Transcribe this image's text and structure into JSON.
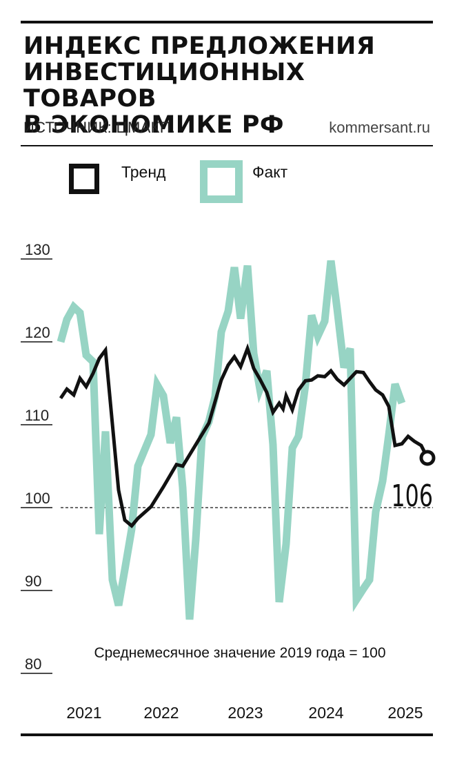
{
  "header": {
    "title_lines": [
      "Индекс предложения",
      "инвестиционных товаров",
      "в экономике РФ"
    ],
    "source": "ИСТОЧНИК: ЦМАКП.",
    "brand": "kommersant.ru"
  },
  "legend": [
    {
      "label": "Тренд",
      "color": "#111111"
    },
    {
      "label": "Факт",
      "color": "#97d4c4"
    }
  ],
  "colors": {
    "trend": "#111111",
    "fact": "#97d4c4",
    "baseline": "#111111"
  },
  "chart_data": {
    "type": "line",
    "title": "Индекс предложения инвестиционных товаров в экономике РФ",
    "subtitle": "",
    "note": "Среднемесячное значение 2019 года = 100",
    "xlabel": "",
    "ylabel": "",
    "ylim": [
      80,
      130
    ],
    "y_ticks": [
      130,
      120,
      110,
      100,
      90,
      80
    ],
    "x_tick_labels": [
      "2021",
      "2022",
      "2023",
      "2024",
      "2025"
    ],
    "x_range": [
      2021.0,
      2025.75
    ],
    "reference_line": {
      "value": 100,
      "style": "dashed"
    },
    "end_label": "106",
    "grid": false,
    "legend_position": "top",
    "series": [
      {
        "name": "Тренд",
        "points": [
          [
            2021.0,
            113.2
          ],
          [
            2021.08,
            114.3
          ],
          [
            2021.17,
            113.6
          ],
          [
            2021.25,
            115.6
          ],
          [
            2021.33,
            114.6
          ],
          [
            2021.42,
            116.2
          ],
          [
            2021.5,
            118.0
          ],
          [
            2021.58,
            119.0
          ],
          [
            2021.75,
            102.1
          ],
          [
            2021.83,
            98.5
          ],
          [
            2021.92,
            97.8
          ],
          [
            2022.0,
            98.7
          ],
          [
            2022.17,
            100.1
          ],
          [
            2022.33,
            102.5
          ],
          [
            2022.5,
            105.2
          ],
          [
            2022.58,
            105.0
          ],
          [
            2022.75,
            107.6
          ],
          [
            2022.92,
            110.2
          ],
          [
            2023.08,
            115.4
          ],
          [
            2023.17,
            117.2
          ],
          [
            2023.25,
            118.2
          ],
          [
            2023.33,
            117.0
          ],
          [
            2023.42,
            119.2
          ],
          [
            2023.5,
            116.8
          ],
          [
            2023.58,
            115.5
          ],
          [
            2023.67,
            113.9
          ],
          [
            2023.75,
            111.5
          ],
          [
            2023.83,
            112.6
          ],
          [
            2023.88,
            111.9
          ],
          [
            2023.92,
            113.5
          ],
          [
            2024.0,
            111.8
          ],
          [
            2024.08,
            114.2
          ],
          [
            2024.17,
            115.3
          ],
          [
            2024.25,
            115.4
          ],
          [
            2024.33,
            115.9
          ],
          [
            2024.42,
            115.8
          ],
          [
            2024.5,
            116.5
          ],
          [
            2024.58,
            115.5
          ],
          [
            2024.67,
            114.8
          ],
          [
            2024.75,
            115.6
          ],
          [
            2024.83,
            116.4
          ],
          [
            2024.92,
            116.3
          ],
          [
            2025.0,
            115.2
          ],
          [
            2025.08,
            114.2
          ],
          [
            2025.17,
            113.6
          ],
          [
            2025.25,
            112.2
          ],
          [
            2025.33,
            107.5
          ],
          [
            2025.42,
            107.7
          ],
          [
            2025.5,
            108.6
          ],
          [
            2025.58,
            108.0
          ],
          [
            2025.67,
            107.5
          ],
          [
            2025.75,
            106.0
          ]
        ]
      },
      {
        "name": "Факт",
        "points": [
          [
            2021.0,
            120.0
          ],
          [
            2021.08,
            122.7
          ],
          [
            2021.17,
            124.2
          ],
          [
            2021.25,
            123.5
          ],
          [
            2021.33,
            118.4
          ],
          [
            2021.42,
            117.6
          ],
          [
            2021.5,
            96.8
          ],
          [
            2021.58,
            109.2
          ],
          [
            2021.67,
            91.3
          ],
          [
            2021.75,
            88.2
          ],
          [
            2021.83,
            92.5
          ],
          [
            2021.92,
            97.4
          ],
          [
            2022.0,
            105.0
          ],
          [
            2022.08,
            106.8
          ],
          [
            2022.17,
            108.8
          ],
          [
            2022.25,
            114.8
          ],
          [
            2022.33,
            113.5
          ],
          [
            2022.42,
            107.8
          ],
          [
            2022.5,
            110.9
          ],
          [
            2022.58,
            102.4
          ],
          [
            2022.67,
            86.5
          ],
          [
            2022.75,
            96.2
          ],
          [
            2022.83,
            108.5
          ],
          [
            2022.92,
            110.4
          ],
          [
            2023.0,
            113.4
          ],
          [
            2023.08,
            121.2
          ],
          [
            2023.17,
            123.7
          ],
          [
            2023.25,
            129.0
          ],
          [
            2023.33,
            122.8
          ],
          [
            2023.42,
            129.2
          ],
          [
            2023.5,
            118.6
          ],
          [
            2023.58,
            114.3
          ],
          [
            2023.67,
            116.5
          ],
          [
            2023.75,
            107.6
          ],
          [
            2023.83,
            88.6
          ],
          [
            2023.92,
            95.6
          ],
          [
            2024.0,
            107.2
          ],
          [
            2024.08,
            108.6
          ],
          [
            2024.17,
            114.8
          ],
          [
            2024.25,
            123.2
          ],
          [
            2024.33,
            120.7
          ],
          [
            2024.42,
            122.5
          ],
          [
            2024.5,
            129.8
          ],
          [
            2024.58,
            124.0
          ],
          [
            2024.67,
            116.9
          ],
          [
            2024.75,
            119.2
          ],
          [
            2024.83,
            88.9
          ],
          [
            2024.92,
            90.2
          ],
          [
            2025.0,
            91.3
          ],
          [
            2025.08,
            99.5
          ],
          [
            2025.17,
            103.2
          ],
          [
            2025.25,
            108.8
          ],
          [
            2025.33,
            114.9
          ],
          [
            2025.42,
            112.6
          ]
        ]
      }
    ]
  }
}
